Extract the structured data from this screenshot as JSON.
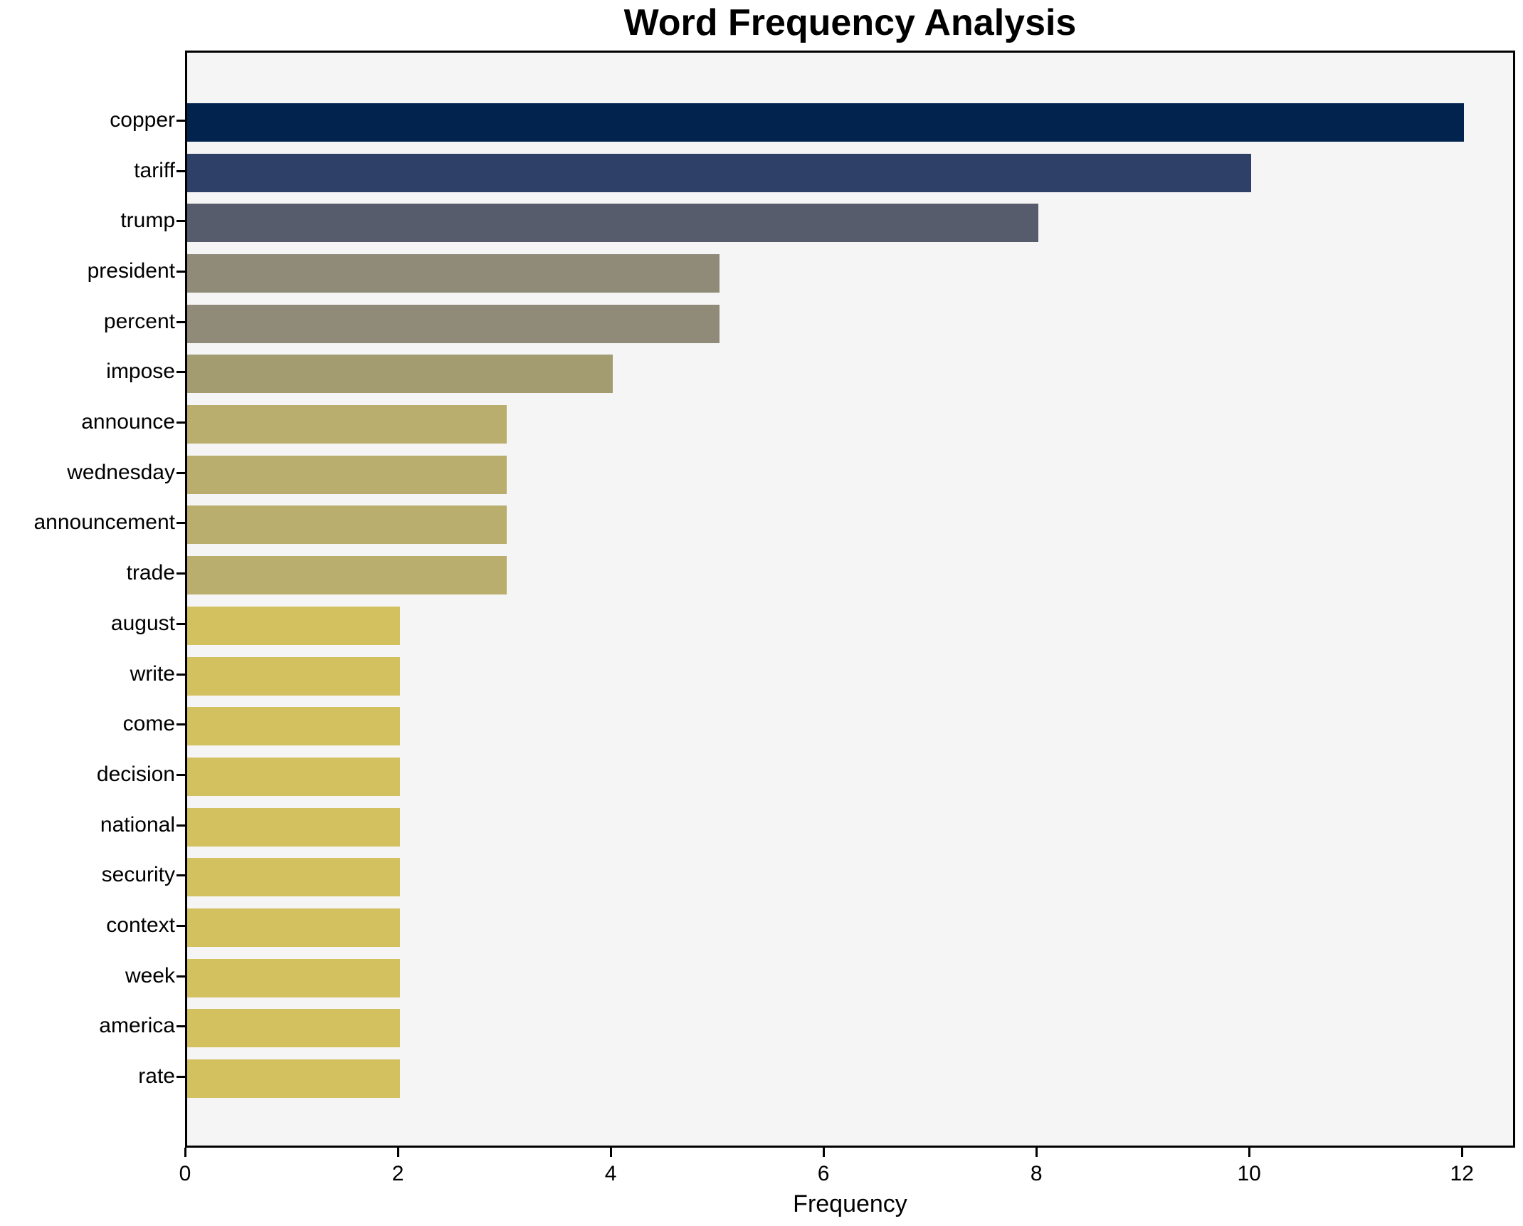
{
  "chart_data": {
    "type": "bar",
    "orientation": "horizontal",
    "title": "Word Frequency Analysis",
    "xlabel": "Frequency",
    "ylabel": "",
    "categories": [
      "copper",
      "tariff",
      "trump",
      "president",
      "percent",
      "impose",
      "announce",
      "wednesday",
      "announcement",
      "trade",
      "august",
      "write",
      "come",
      "decision",
      "national",
      "security",
      "context",
      "week",
      "america",
      "rate"
    ],
    "values": [
      12,
      10,
      8,
      5,
      5,
      4,
      3,
      3,
      3,
      3,
      2,
      2,
      2,
      2,
      2,
      2,
      2,
      2,
      2,
      2
    ],
    "bar_colors": [
      "#01234e",
      "#2e4068",
      "#565c6c",
      "#908a78",
      "#908a78",
      "#a39c71",
      "#b9ae6d",
      "#b9ae6d",
      "#b9ae6d",
      "#b9ae6d",
      "#d3c05f",
      "#d3c05f",
      "#d3c05f",
      "#d3c05f",
      "#d3c05f",
      "#d3c05f",
      "#d3c05f",
      "#d3c05f",
      "#d3c05f",
      "#d3c05f"
    ],
    "xlim": [
      0,
      12.5
    ],
    "xticks": [
      0,
      2,
      4,
      6,
      8,
      10,
      12
    ],
    "grid": false,
    "legend": "none",
    "plot_background": "#f5f5f5",
    "figure_background": "#ffffff",
    "spine_color": "#000000",
    "text_color": "#000000"
  }
}
